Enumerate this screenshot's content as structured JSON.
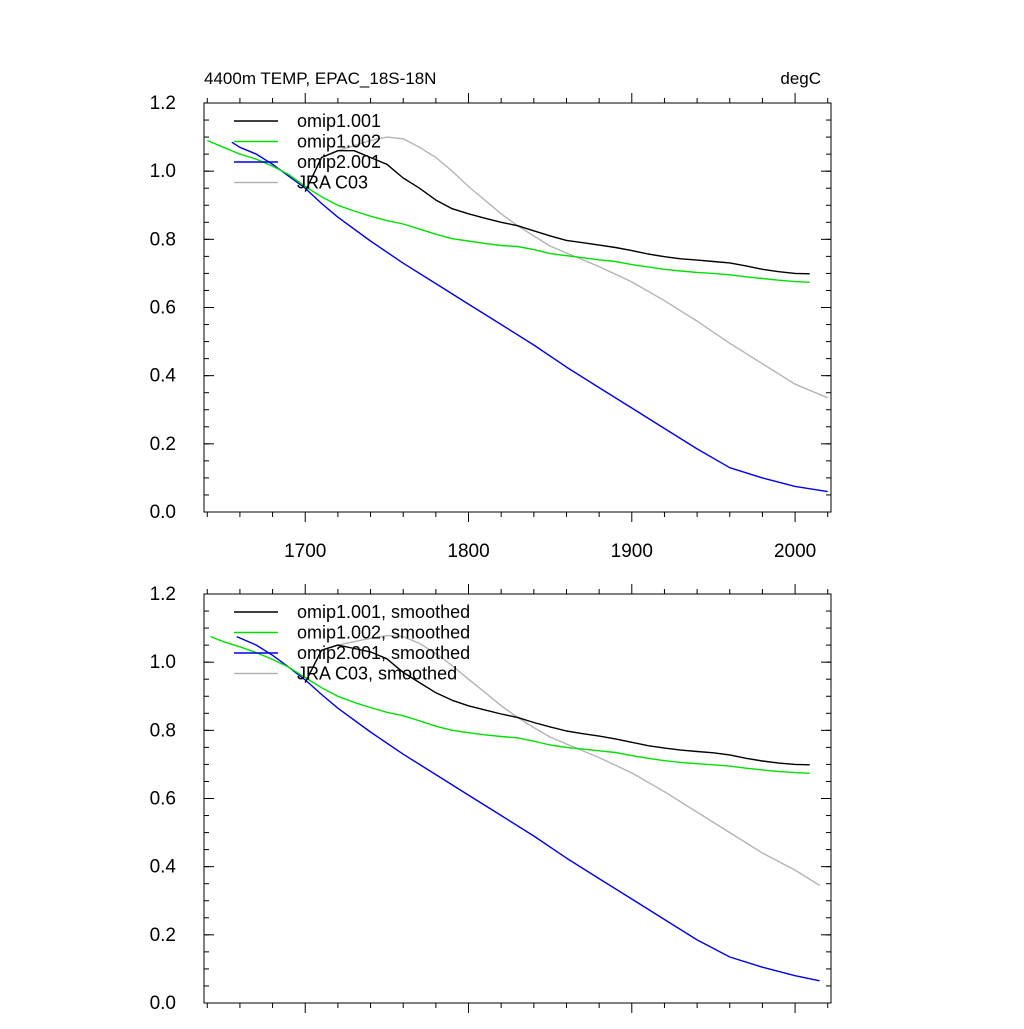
{
  "header": {
    "title_left": "4400m TEMP, EPAC_18S-18N",
    "title_right": "degC"
  },
  "colors": {
    "omip1_001": "#000000",
    "omip1_002": "#00e000",
    "omip2_001": "#0000e6",
    "jra_c03": "#b4b4b4"
  },
  "chart_data": [
    {
      "type": "line",
      "xlim": [
        1638,
        2022
      ],
      "ylim": [
        0.0,
        1.2
      ],
      "x_ticks": [
        1700,
        1800,
        1900,
        2000
      ],
      "x_tick_labels": [
        "1700",
        "1800",
        "1900",
        "2000"
      ],
      "y_ticks": [
        0.0,
        0.2,
        0.4,
        0.6,
        0.8,
        1.0,
        1.2
      ],
      "y_tick_labels": [
        "0.0",
        "0.2",
        "0.4",
        "0.6",
        "0.8",
        "1.0",
        "1.2"
      ],
      "grid": false,
      "legend_position": "top-left",
      "series": [
        {
          "name": "omip1.001",
          "color_key": "omip1_001",
          "x": [
            1700,
            1710,
            1720,
            1730,
            1740,
            1750,
            1760,
            1770,
            1780,
            1790,
            1800,
            1810,
            1820,
            1830,
            1840,
            1850,
            1860,
            1870,
            1880,
            1890,
            1900,
            1910,
            1920,
            1930,
            1940,
            1950,
            1960,
            1970,
            1980,
            1990,
            2000,
            2009
          ],
          "y": [
            0.94,
            1.04,
            1.06,
            1.06,
            1.04,
            1.02,
            0.98,
            0.95,
            0.915,
            0.89,
            0.875,
            0.862,
            0.85,
            0.84,
            0.825,
            0.81,
            0.797,
            0.79,
            0.783,
            0.776,
            0.767,
            0.757,
            0.749,
            0.743,
            0.739,
            0.735,
            0.731,
            0.722,
            0.712,
            0.705,
            0.7,
            0.699
          ]
        },
        {
          "name": "omip1.002",
          "color_key": "omip1_002",
          "x": [
            1640,
            1650,
            1660,
            1670,
            1680,
            1690,
            1700,
            1710,
            1720,
            1730,
            1740,
            1750,
            1760,
            1770,
            1780,
            1790,
            1800,
            1810,
            1820,
            1830,
            1840,
            1850,
            1860,
            1870,
            1880,
            1890,
            1900,
            1910,
            1920,
            1930,
            1940,
            1950,
            1960,
            1970,
            1980,
            1990,
            2000,
            2009
          ],
          "y": [
            1.09,
            1.07,
            1.05,
            1.035,
            1.015,
            0.99,
            0.955,
            0.925,
            0.9,
            0.883,
            0.868,
            0.855,
            0.845,
            0.83,
            0.815,
            0.802,
            0.795,
            0.788,
            0.782,
            0.779,
            0.77,
            0.758,
            0.752,
            0.746,
            0.74,
            0.735,
            0.726,
            0.719,
            0.712,
            0.707,
            0.703,
            0.7,
            0.696,
            0.69,
            0.685,
            0.68,
            0.676,
            0.674
          ]
        },
        {
          "name": "omip2.001",
          "color_key": "omip2_001",
          "x": [
            1655,
            1660,
            1670,
            1680,
            1690,
            1700,
            1710,
            1720,
            1740,
            1760,
            1780,
            1800,
            1820,
            1840,
            1860,
            1880,
            1900,
            1920,
            1940,
            1960,
            1980,
            2000,
            2020
          ],
          "y": [
            1.085,
            1.07,
            1.05,
            1.02,
            0.985,
            0.95,
            0.905,
            0.865,
            0.795,
            0.73,
            0.67,
            0.61,
            0.55,
            0.49,
            0.425,
            0.365,
            0.305,
            0.245,
            0.185,
            0.13,
            0.1,
            0.075,
            0.06
          ]
        },
        {
          "name": "JRA C03",
          "color_key": "jra_c03",
          "x": [
            1700,
            1710,
            1720,
            1730,
            1740,
            1750,
            1760,
            1770,
            1780,
            1790,
            1800,
            1810,
            1820,
            1830,
            1840,
            1850,
            1860,
            1880,
            1900,
            1920,
            1940,
            1960,
            1980,
            2000,
            2020
          ],
          "y": [
            0.94,
            1.04,
            1.06,
            1.075,
            1.09,
            1.1,
            1.095,
            1.07,
            1.04,
            1.0,
            0.955,
            0.915,
            0.875,
            0.84,
            0.81,
            0.78,
            0.76,
            0.72,
            0.675,
            0.62,
            0.56,
            0.495,
            0.435,
            0.375,
            0.335
          ]
        }
      ]
    },
    {
      "type": "line",
      "xlim": [
        1638,
        2022
      ],
      "ylim": [
        0.0,
        1.2
      ],
      "x_ticks": [
        1700,
        1800,
        1900,
        2000
      ],
      "x_tick_labels": [],
      "y_ticks": [
        0.0,
        0.2,
        0.4,
        0.6,
        0.8,
        1.0,
        1.2
      ],
      "y_tick_labels": [
        "0.0",
        "0.2",
        "0.4",
        "0.6",
        "0.8",
        "1.0",
        "1.2"
      ],
      "grid": false,
      "legend_position": "top-left",
      "series": [
        {
          "name": "omip1.001, smoothed",
          "color_key": "omip1_001",
          "x": [
            1700,
            1710,
            1720,
            1730,
            1740,
            1750,
            1760,
            1770,
            1780,
            1790,
            1800,
            1810,
            1820,
            1830,
            1840,
            1850,
            1860,
            1870,
            1880,
            1890,
            1900,
            1910,
            1920,
            1930,
            1940,
            1950,
            1960,
            1970,
            1980,
            1990,
            2000,
            2009
          ],
          "y": [
            0.94,
            1.035,
            1.05,
            1.04,
            1.03,
            1.01,
            0.97,
            0.94,
            0.91,
            0.888,
            0.872,
            0.86,
            0.848,
            0.838,
            0.823,
            0.81,
            0.798,
            0.79,
            0.783,
            0.775,
            0.765,
            0.755,
            0.748,
            0.742,
            0.738,
            0.734,
            0.728,
            0.718,
            0.71,
            0.704,
            0.7,
            0.699
          ]
        },
        {
          "name": "omip1.002, smoothed",
          "color_key": "omip1_002",
          "x": [
            1642,
            1650,
            1660,
            1670,
            1680,
            1690,
            1700,
            1710,
            1720,
            1730,
            1740,
            1750,
            1760,
            1770,
            1780,
            1790,
            1800,
            1810,
            1820,
            1830,
            1840,
            1850,
            1860,
            1870,
            1880,
            1890,
            1900,
            1910,
            1920,
            1930,
            1940,
            1950,
            1960,
            1970,
            1980,
            1990,
            2000,
            2009
          ],
          "y": [
            1.075,
            1.06,
            1.045,
            1.028,
            1.008,
            0.985,
            0.955,
            0.925,
            0.9,
            0.882,
            0.867,
            0.853,
            0.843,
            0.828,
            0.812,
            0.8,
            0.793,
            0.787,
            0.782,
            0.778,
            0.768,
            0.757,
            0.75,
            0.745,
            0.74,
            0.735,
            0.726,
            0.718,
            0.711,
            0.706,
            0.702,
            0.699,
            0.695,
            0.689,
            0.684,
            0.679,
            0.676,
            0.674
          ]
        },
        {
          "name": "omip2.001, smoothed",
          "color_key": "omip2_001",
          "x": [
            1658,
            1670,
            1680,
            1690,
            1700,
            1710,
            1720,
            1740,
            1760,
            1780,
            1800,
            1820,
            1840,
            1860,
            1880,
            1900,
            1920,
            1940,
            1960,
            1980,
            2000,
            2015
          ],
          "y": [
            1.075,
            1.05,
            1.02,
            0.985,
            0.948,
            0.905,
            0.865,
            0.795,
            0.73,
            0.67,
            0.61,
            0.55,
            0.49,
            0.425,
            0.365,
            0.305,
            0.245,
            0.185,
            0.135,
            0.105,
            0.08,
            0.065
          ]
        },
        {
          "name": "JRA C03, smoothed",
          "color_key": "jra_c03",
          "x": [
            1700,
            1710,
            1720,
            1730,
            1740,
            1750,
            1760,
            1770,
            1780,
            1790,
            1800,
            1810,
            1820,
            1830,
            1840,
            1850,
            1860,
            1880,
            1900,
            1920,
            1940,
            1960,
            1980,
            2000,
            2015
          ],
          "y": [
            0.94,
            1.035,
            1.05,
            1.06,
            1.07,
            1.078,
            1.075,
            1.055,
            1.025,
            0.99,
            0.95,
            0.912,
            0.872,
            0.838,
            0.808,
            0.78,
            0.76,
            0.72,
            0.675,
            0.62,
            0.56,
            0.5,
            0.44,
            0.39,
            0.345
          ]
        }
      ]
    }
  ]
}
